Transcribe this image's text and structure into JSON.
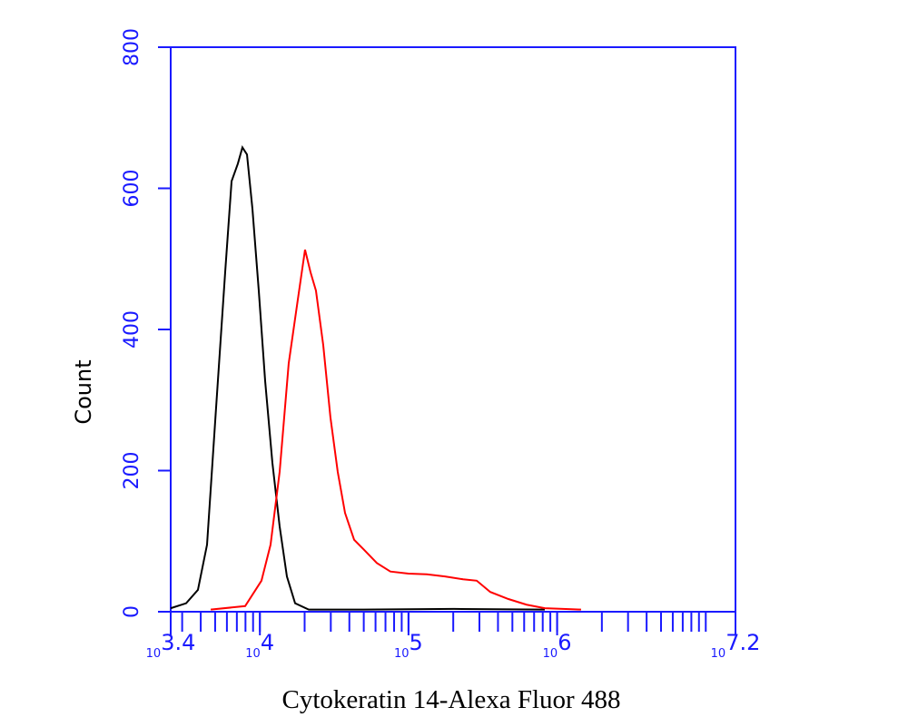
{
  "chart_data": {
    "type": "line",
    "xlabel": "Cytokeratin 14-Alexa Fluor 488",
    "ylabel": "Count",
    "xscale": "log",
    "xlim": [
      2511.886,
      15848931.9
    ],
    "xticks": [
      {
        "value": 2511.886,
        "label": "103.4"
      },
      {
        "value": 10000,
        "label": "104"
      },
      {
        "value": 100000,
        "label": "105"
      },
      {
        "value": 1000000,
        "label": "106"
      },
      {
        "value": 15848931.9,
        "label": "107.2"
      }
    ],
    "xminor": true,
    "ylim": [
      0,
      800
    ],
    "yticks": [
      0,
      200,
      400,
      600,
      800
    ],
    "axis_color": "#1a1aff",
    "series": [
      {
        "color": "#000000",
        "x": [
          2512,
          3190,
          3830,
          4410,
          5070,
          5840,
          6450,
          7110,
          7630,
          8190,
          8910,
          9830,
          10850,
          12140,
          13580,
          15200,
          17260,
          21320,
          49580,
          202300,
          826000
        ],
        "values": [
          5,
          12,
          31,
          95,
          288,
          481,
          610,
          635,
          658,
          648,
          571,
          455,
          327,
          211,
          121,
          50,
          12,
          3,
          3,
          4,
          3
        ]
      },
      {
        "color": "#ff0000",
        "x": [
          4670,
          7960,
          10250,
          11800,
          13580,
          15630,
          17990,
          20130,
          21920,
          23840,
          26680,
          29850,
          33420,
          37410,
          43060,
          49580,
          61240,
          75510,
          100000,
          132700,
          175700,
          232800,
          287700,
          355000,
          470000,
          623000,
          826000,
          1094000,
          1449000
        ],
        "values": [
          3,
          8,
          44,
          95,
          198,
          352,
          442,
          513,
          481,
          455,
          378,
          275,
          198,
          140,
          102,
          89,
          69,
          57,
          54,
          53,
          50,
          46,
          44,
          28,
          18,
          10,
          5,
          4,
          3
        ]
      }
    ]
  }
}
